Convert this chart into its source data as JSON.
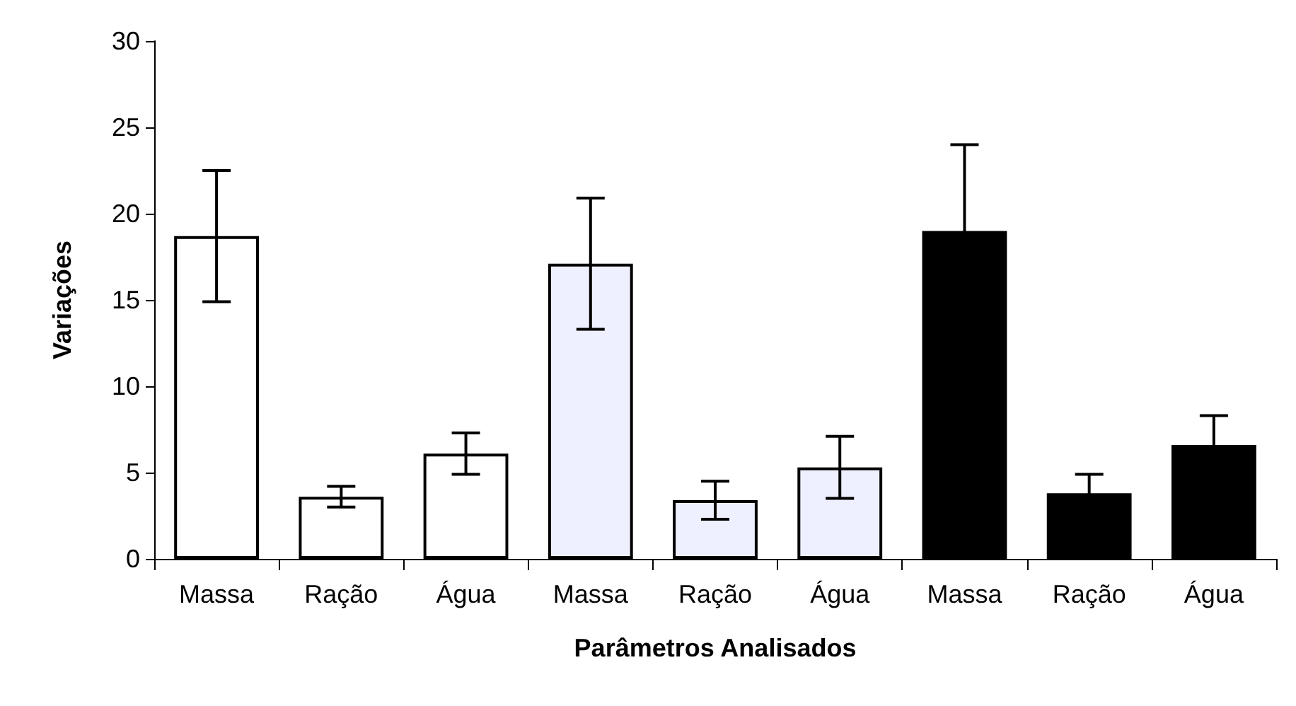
{
  "chart_data": {
    "type": "bar",
    "xlabel": "Parâmetros Analisados",
    "ylabel": "Variações",
    "categories": [
      "Massa",
      "Ração",
      "Água",
      "Massa",
      "Ração",
      "Água",
      "Massa",
      "Ração",
      "Água"
    ],
    "values": [
      18.7,
      3.6,
      6.1,
      17.1,
      3.4,
      5.3,
      19.0,
      3.8,
      6.6
    ],
    "errors": [
      3.8,
      0.6,
      1.2,
      3.8,
      1.1,
      1.8,
      5.0,
      1.1,
      1.7
    ],
    "colors": [
      "#ffffff",
      "#ffffff",
      "#ffffff",
      "#eef0ff",
      "#eef0ff",
      "#eef0ff",
      "#000000",
      "#000000",
      "#000000"
    ],
    "ylim": [
      0,
      30
    ],
    "yticks": [
      0,
      5,
      10,
      15,
      20,
      25,
      30
    ],
    "grid": false
  }
}
